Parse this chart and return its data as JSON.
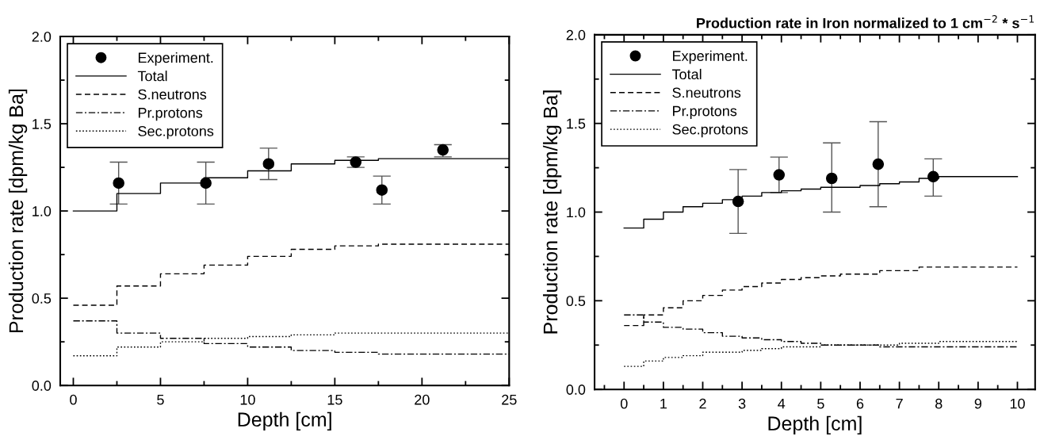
{
  "chart_data": [
    {
      "type": "step",
      "xlabel": "Depth [cm]",
      "ylabel": "Production rate [dpm/kg Ba]",
      "xlim": [
        -0.75,
        25
      ],
      "xticks": [
        0,
        {
          "value": 2.5,
          "label": null
        },
        5,
        {
          "value": 7.5,
          "label": null
        },
        10,
        {
          "value": 12.5,
          "label": null
        },
        15,
        {
          "value": 17.5,
          "label": null
        },
        20,
        {
          "value": 22.5,
          "label": null
        },
        25
      ],
      "ylim": [
        0,
        2
      ],
      "yticks": [
        {
          "value": 0,
          "label": "0.0"
        },
        {
          "value": 0.25,
          "label": null
        },
        {
          "value": 0.5,
          "label": "0.5"
        },
        {
          "value": 0.75,
          "label": null
        },
        {
          "value": 1,
          "label": "1.0"
        },
        {
          "value": 1.25,
          "label": null
        },
        {
          "value": 1.5,
          "label": "1.5"
        },
        {
          "value": 1.75,
          "label": null
        },
        {
          "value": 2,
          "label": "2.0"
        }
      ],
      "grid": false,
      "legend": "top left",
      "series": [
        {
          "name": "Experiment.",
          "type": "scatter",
          "marker": "circle",
          "color": "#000000",
          "x": [
            2.6,
            7.6,
            11.2,
            16.2,
            17.7,
            21.2
          ],
          "values": [
            1.16,
            1.16,
            1.27,
            1.28,
            1.12,
            1.35
          ],
          "errors": [
            [
              1.04,
              1.28
            ],
            [
              1.04,
              1.28
            ],
            [
              1.18,
              1.36
            ],
            [
              1.25,
              1.31
            ],
            [
              1.04,
              1.2
            ],
            [
              1.31,
              1.38
            ]
          ]
        },
        {
          "name": "Total",
          "line_style": "solid",
          "color": "#000000",
          "x": [
            0,
            2.5,
            5,
            7.5,
            10,
            12.5,
            15,
            17.5,
            25
          ],
          "values": [
            1.0,
            1.1,
            1.16,
            1.19,
            1.23,
            1.27,
            1.29,
            1.3,
            1.3
          ]
        },
        {
          "name": "S.neutrons",
          "line_style": "dashed",
          "color": "#000000",
          "x": [
            0,
            2.5,
            5,
            7.5,
            10,
            12.5,
            15,
            17.5,
            25
          ],
          "values": [
            0.46,
            0.57,
            0.64,
            0.69,
            0.74,
            0.78,
            0.8,
            0.81,
            0.81
          ]
        },
        {
          "name": "Pr.protons",
          "line_style": "dashdot",
          "color": "#000000",
          "x": [
            0,
            2.5,
            5,
            7.5,
            10,
            12.5,
            15,
            17.5,
            25
          ],
          "values": [
            0.37,
            0.3,
            0.27,
            0.24,
            0.22,
            0.2,
            0.19,
            0.18,
            0.18
          ]
        },
        {
          "name": "Sec.protons",
          "line_style": "dotted",
          "color": "#000000",
          "x": [
            0,
            2.5,
            5,
            7.5,
            10,
            12.5,
            15,
            17.5,
            25
          ],
          "values": [
            0.17,
            0.22,
            0.25,
            0.27,
            0.28,
            0.29,
            0.3,
            0.3,
            0.3
          ]
        }
      ]
    },
    {
      "type": "step",
      "title": "Production rate in Iron normalized to 1 cm$^{−2}$ * s$^{−1}$",
      "xlabel": "Depth [cm]",
      "ylabel": "Production rate [dpm/kg Ba]",
      "xlim": [
        -0.75,
        10.45
      ],
      "xticks": [
        {
          "value": -0.5,
          "label": null
        },
        0,
        {
          "value": 0.5,
          "label": null
        },
        1,
        {
          "value": 1.5,
          "label": null
        },
        2,
        {
          "value": 2.5,
          "label": null
        },
        3,
        {
          "value": 3.5,
          "label": null
        },
        4,
        {
          "value": 4.5,
          "label": null
        },
        5,
        {
          "value": 5.5,
          "label": null
        },
        6,
        {
          "value": 6.5,
          "label": null
        },
        7,
        {
          "value": 7.5,
          "label": null
        },
        8,
        {
          "value": 8.5,
          "label": null
        },
        9,
        {
          "value": 9.5,
          "label": null
        },
        10
      ],
      "ylim": [
        0,
        2
      ],
      "yticks": [
        {
          "value": 0,
          "label": "0.0"
        },
        {
          "value": 0.25,
          "label": null
        },
        {
          "value": 0.5,
          "label": "0.5"
        },
        {
          "value": 0.75,
          "label": null
        },
        {
          "value": 1,
          "label": "1.0"
        },
        {
          "value": 1.25,
          "label": null
        },
        {
          "value": 1.5,
          "label": "1.5"
        },
        {
          "value": 1.75,
          "label": null
        },
        {
          "value": 2,
          "label": "2.0"
        }
      ],
      "grid": false,
      "legend": "top left",
      "series": [
        {
          "name": "Experiment.",
          "type": "scatter",
          "marker": "circle",
          "color": "#000000",
          "x": [
            2.9,
            3.94,
            5.28,
            6.46,
            7.86
          ],
          "values": [
            1.06,
            1.21,
            1.19,
            1.27,
            1.2
          ],
          "errors": [
            [
              0.88,
              1.24
            ],
            [
              1.11,
              1.31
            ],
            [
              1.0,
              1.39
            ],
            [
              1.03,
              1.51
            ],
            [
              1.09,
              1.3
            ]
          ]
        },
        {
          "name": "Total",
          "line_style": "solid",
          "color": "#000000",
          "x": [
            0,
            0.5,
            1,
            1.5,
            2,
            2.5,
            3,
            3.5,
            4,
            4.5,
            5,
            5.5,
            6,
            6.5,
            7,
            7.5,
            8,
            10
          ],
          "values": [
            0.91,
            0.96,
            1.0,
            1.03,
            1.05,
            1.07,
            1.09,
            1.11,
            1.12,
            1.13,
            1.14,
            1.14,
            1.15,
            1.16,
            1.17,
            1.19,
            1.2,
            1.2
          ]
        },
        {
          "name": "S.neutrons",
          "line_style": "dashed",
          "color": "#000000",
          "x": [
            0,
            0.5,
            1,
            1.5,
            2,
            2.5,
            3,
            3.5,
            4,
            4.5,
            5,
            5.5,
            6,
            6.5,
            7,
            7.5,
            8,
            10
          ],
          "values": [
            0.36,
            0.42,
            0.46,
            0.5,
            0.53,
            0.56,
            0.58,
            0.6,
            0.62,
            0.63,
            0.64,
            0.65,
            0.65,
            0.67,
            0.67,
            0.69,
            0.69,
            0.69
          ]
        },
        {
          "name": "Pr.protons",
          "line_style": "dashdot",
          "color": "#000000",
          "x": [
            0,
            0.5,
            1,
            1.5,
            2,
            2.5,
            3,
            3.5,
            4,
            4.5,
            5,
            5.5,
            6,
            6.5,
            7,
            7.5,
            8,
            10
          ],
          "values": [
            0.42,
            0.38,
            0.35,
            0.34,
            0.32,
            0.3,
            0.29,
            0.28,
            0.27,
            0.26,
            0.25,
            0.25,
            0.25,
            0.24,
            0.24,
            0.24,
            0.24,
            0.24
          ]
        },
        {
          "name": "Sec.protons",
          "line_style": "dotted",
          "color": "#000000",
          "x": [
            0,
            0.5,
            1,
            1.5,
            2,
            2.5,
            3,
            3.5,
            4,
            4.5,
            5,
            5.5,
            6,
            6.5,
            7,
            7.5,
            8,
            10
          ],
          "values": [
            0.13,
            0.16,
            0.18,
            0.19,
            0.21,
            0.21,
            0.22,
            0.23,
            0.24,
            0.24,
            0.25,
            0.25,
            0.25,
            0.25,
            0.26,
            0.26,
            0.27,
            0.27
          ]
        }
      ]
    }
  ]
}
